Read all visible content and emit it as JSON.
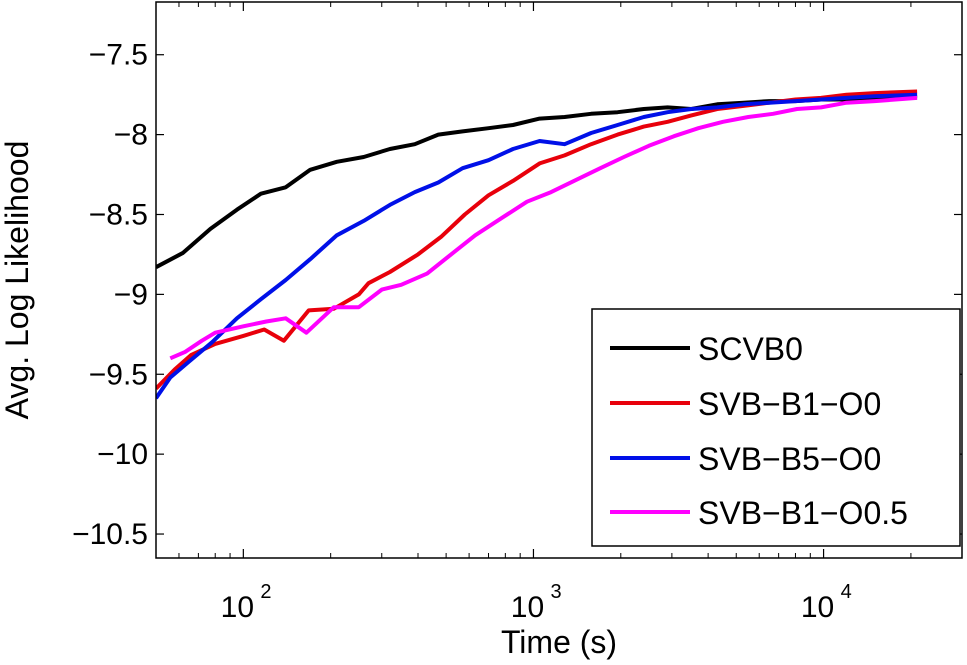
{
  "chart_data": {
    "type": "line",
    "title": "",
    "xlabel": "Time (s)",
    "ylabel": "Avg. Log Likelihood",
    "xscale": "log",
    "xlim": [
      50,
      30000
    ],
    "ylim": [
      -10.65,
      -7.17
    ],
    "grid": false,
    "legend_position": "bottom-right",
    "x_ticks": [
      {
        "value": 100,
        "base": "10",
        "exp": "2"
      },
      {
        "value": 1000,
        "base": "10",
        "exp": "3"
      },
      {
        "value": 10000,
        "base": "10",
        "exp": "4"
      }
    ],
    "y_ticks": [
      {
        "value": -7.5,
        "label": "−7.5"
      },
      {
        "value": -8,
        "label": "−8"
      },
      {
        "value": -8.5,
        "label": "−8.5"
      },
      {
        "value": -9,
        "label": "−9"
      },
      {
        "value": -9.5,
        "label": "−9.5"
      },
      {
        "value": -10,
        "label": "−10"
      },
      {
        "value": -10.5,
        "label": "−10.5"
      }
    ],
    "series": [
      {
        "name": "SCVB0",
        "color": "#000000",
        "points": [
          [
            50,
            -8.83
          ],
          [
            62,
            -8.74
          ],
          [
            77,
            -8.59
          ],
          [
            95,
            -8.47
          ],
          [
            115,
            -8.37
          ],
          [
            140,
            -8.33
          ],
          [
            170,
            -8.22
          ],
          [
            210,
            -8.17
          ],
          [
            260,
            -8.14
          ],
          [
            320,
            -8.09
          ],
          [
            390,
            -8.06
          ],
          [
            470,
            -8.0
          ],
          [
            570,
            -7.98
          ],
          [
            700,
            -7.96
          ],
          [
            850,
            -7.94
          ],
          [
            1050,
            -7.9
          ],
          [
            1280,
            -7.89
          ],
          [
            1580,
            -7.87
          ],
          [
            1950,
            -7.86
          ],
          [
            2400,
            -7.84
          ],
          [
            2900,
            -7.83
          ],
          [
            3500,
            -7.84
          ],
          [
            4300,
            -7.81
          ],
          [
            5300,
            -7.8
          ],
          [
            6500,
            -7.79
          ],
          [
            8000,
            -7.79
          ],
          [
            9800,
            -7.78
          ],
          [
            12000,
            -7.78
          ],
          [
            15000,
            -7.77
          ],
          [
            21000,
            -7.76
          ]
        ]
      },
      {
        "name": "SVB−B1−O0",
        "color": "#e8000b",
        "points": [
          [
            50,
            -9.59
          ],
          [
            58,
            -9.47
          ],
          [
            66,
            -9.38
          ],
          [
            80,
            -9.31
          ],
          [
            100,
            -9.26
          ],
          [
            118,
            -9.22
          ],
          [
            138,
            -9.29
          ],
          [
            168,
            -9.1
          ],
          [
            205,
            -9.09
          ],
          [
            250,
            -9.0
          ],
          [
            270,
            -8.93
          ],
          [
            320,
            -8.86
          ],
          [
            400,
            -8.75
          ],
          [
            480,
            -8.64
          ],
          [
            580,
            -8.5
          ],
          [
            700,
            -8.38
          ],
          [
            850,
            -8.29
          ],
          [
            1050,
            -8.18
          ],
          [
            1280,
            -8.13
          ],
          [
            1580,
            -8.06
          ],
          [
            1950,
            -8.0
          ],
          [
            2400,
            -7.95
          ],
          [
            2900,
            -7.92
          ],
          [
            3500,
            -7.88
          ],
          [
            4300,
            -7.84
          ],
          [
            5300,
            -7.82
          ],
          [
            6500,
            -7.8
          ],
          [
            8000,
            -7.78
          ],
          [
            9800,
            -7.77
          ],
          [
            12000,
            -7.75
          ],
          [
            15000,
            -7.74
          ],
          [
            21000,
            -7.73
          ]
        ]
      },
      {
        "name": "SVB−B5−O0",
        "color": "#0010e8",
        "points": [
          [
            50,
            -9.65
          ],
          [
            56,
            -9.52
          ],
          [
            65,
            -9.42
          ],
          [
            78,
            -9.3
          ],
          [
            95,
            -9.15
          ],
          [
            115,
            -9.03
          ],
          [
            140,
            -8.91
          ],
          [
            170,
            -8.78
          ],
          [
            210,
            -8.63
          ],
          [
            260,
            -8.54
          ],
          [
            320,
            -8.44
          ],
          [
            390,
            -8.36
          ],
          [
            470,
            -8.3
          ],
          [
            570,
            -8.21
          ],
          [
            700,
            -8.16
          ],
          [
            850,
            -8.09
          ],
          [
            1050,
            -8.04
          ],
          [
            1280,
            -8.06
          ],
          [
            1580,
            -7.99
          ],
          [
            1950,
            -7.94
          ],
          [
            2400,
            -7.89
          ],
          [
            2900,
            -7.86
          ],
          [
            3500,
            -7.84
          ],
          [
            4300,
            -7.83
          ],
          [
            5300,
            -7.81
          ],
          [
            6500,
            -7.8
          ],
          [
            8000,
            -7.79
          ],
          [
            9800,
            -7.78
          ],
          [
            12000,
            -7.77
          ],
          [
            15000,
            -7.76
          ],
          [
            21000,
            -7.75
          ]
        ]
      },
      {
        "name": "SVB−B1−O0.5",
        "color": "#ff00ff",
        "points": [
          [
            56,
            -9.4
          ],
          [
            63,
            -9.36
          ],
          [
            72,
            -9.29
          ],
          [
            80,
            -9.24
          ],
          [
            100,
            -9.2
          ],
          [
            120,
            -9.17
          ],
          [
            140,
            -9.15
          ],
          [
            165,
            -9.24
          ],
          [
            205,
            -9.08
          ],
          [
            250,
            -9.08
          ],
          [
            300,
            -8.97
          ],
          [
            350,
            -8.94
          ],
          [
            430,
            -8.87
          ],
          [
            520,
            -8.75
          ],
          [
            630,
            -8.63
          ],
          [
            780,
            -8.52
          ],
          [
            950,
            -8.42
          ],
          [
            1150,
            -8.36
          ],
          [
            1380,
            -8.29
          ],
          [
            1700,
            -8.21
          ],
          [
            2050,
            -8.14
          ],
          [
            2500,
            -8.07
          ],
          [
            3050,
            -8.01
          ],
          [
            3700,
            -7.96
          ],
          [
            4500,
            -7.92
          ],
          [
            5500,
            -7.89
          ],
          [
            6700,
            -7.87
          ],
          [
            8100,
            -7.84
          ],
          [
            9800,
            -7.83
          ],
          [
            12000,
            -7.8
          ],
          [
            15000,
            -7.79
          ],
          [
            21000,
            -7.77
          ]
        ]
      }
    ]
  }
}
